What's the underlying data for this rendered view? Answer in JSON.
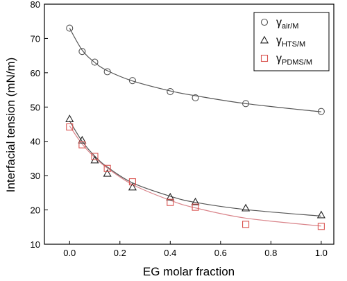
{
  "chart_data": {
    "type": "scatter",
    "xlabel": "EG molar fraction",
    "ylabel": "Interfacial tension (mN/m)",
    "xlim": [
      -0.1,
      1.05
    ],
    "ylim": [
      10,
      80
    ],
    "xticks": [
      0.0,
      0.2,
      0.4,
      0.6,
      0.8,
      1.0
    ],
    "xtick_labels": [
      "0.0",
      "0.2",
      "0.4",
      "0.6",
      "0.8",
      "1.0"
    ],
    "yticks": [
      10,
      20,
      30,
      40,
      50,
      60,
      70,
      80
    ],
    "ytick_labels": [
      "10",
      "20",
      "30",
      "40",
      "50",
      "60",
      "70",
      "80"
    ],
    "grid": false,
    "legend_position": "top-right",
    "series": [
      {
        "name": "γair/M",
        "label_main": "γ",
        "label_sub": "air/M",
        "marker": "circle",
        "marker_color": "#555555",
        "fit_color": "#555555",
        "x": [
          0.0,
          0.05,
          0.1,
          0.15,
          0.25,
          0.4,
          0.5,
          0.7,
          1.0
        ],
        "y": [
          73.0,
          66.2,
          63.1,
          60.3,
          57.7,
          54.5,
          52.7,
          51.0,
          48.7
        ],
        "fit_y": [
          73.0,
          66.6,
          63.0,
          60.6,
          57.6,
          54.7,
          53.3,
          51.0,
          48.6
        ]
      },
      {
        "name": "γHTS/M",
        "label_main": "γ",
        "label_sub": "HTS/M",
        "marker": "triangle",
        "marker_color": "#222222",
        "fit_color": "#555555",
        "x": [
          0.0,
          0.05,
          0.1,
          0.15,
          0.25,
          0.4,
          0.5,
          0.7,
          1.0
        ],
        "y": [
          46.5,
          40.3,
          34.5,
          30.6,
          26.6,
          23.7,
          22.3,
          20.5,
          18.5
        ],
        "fit_y": [
          46.0,
          40.0,
          35.7,
          32.5,
          27.9,
          24.0,
          22.2,
          20.1,
          18.2
        ]
      },
      {
        "name": "γPDMS/M",
        "label_main": "γ",
        "label_sub": "PDMS/M",
        "marker": "square",
        "marker_color": "#d9534f",
        "fit_color": "#d9848a",
        "x": [
          0.0,
          0.05,
          0.1,
          0.15,
          0.25,
          0.4,
          0.5,
          0.7,
          1.0
        ],
        "y": [
          44.2,
          39.0,
          35.6,
          32.1,
          28.2,
          22.2,
          20.8,
          15.8,
          15.2
        ],
        "fit_y": [
          44.5,
          39.2,
          35.3,
          32.2,
          27.4,
          22.8,
          20.6,
          17.6,
          15.3
        ]
      }
    ]
  }
}
